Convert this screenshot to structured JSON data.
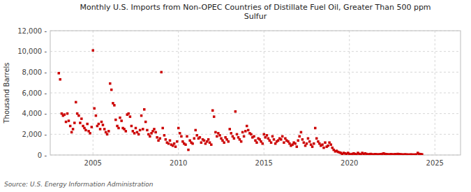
{
  "chart_data": {
    "type": "scatter",
    "title": "Monthly U.S. Imports from Non-OPEC Countries of Distillate Fuel Oil, Greater Than 500 ppm\nSulfur",
    "ylabel": "Thousand Barrels",
    "source": "Source: U.S. Energy Information Administration",
    "color": "#cc0000",
    "marker": "square",
    "grid": true,
    "xlim": [
      2002.5,
      2026.5
    ],
    "xticks": [
      2005,
      2010,
      2015,
      2020,
      2025
    ],
    "ylim": [
      0,
      12000
    ],
    "yticks": [
      {
        "value": 0,
        "label": "0 -"
      },
      {
        "value": 2000,
        "label": "2,000 -"
      },
      {
        "value": 4000,
        "label": "4,000 -"
      },
      {
        "value": 6000,
        "label": "6,000 -"
      },
      {
        "value": 8000,
        "label": "8,000 -"
      },
      {
        "value": 10000,
        "label": "10,000 -"
      },
      {
        "value": 12000,
        "label": "12,000 -"
      }
    ],
    "x": [
      2003.0,
      2003.08,
      2003.17,
      2003.25,
      2003.33,
      2003.42,
      2003.5,
      2003.58,
      2003.67,
      2003.75,
      2003.83,
      2003.92,
      2004.0,
      2004.08,
      2004.17,
      2004.25,
      2004.33,
      2004.42,
      2004.5,
      2004.58,
      2004.67,
      2004.75,
      2004.83,
      2004.92,
      2005.0,
      2005.08,
      2005.17,
      2005.25,
      2005.33,
      2005.42,
      2005.5,
      2005.58,
      2005.67,
      2005.75,
      2005.83,
      2005.92,
      2006.0,
      2006.08,
      2006.17,
      2006.25,
      2006.33,
      2006.42,
      2006.5,
      2006.58,
      2006.67,
      2006.75,
      2006.83,
      2006.92,
      2007.0,
      2007.08,
      2007.17,
      2007.25,
      2007.33,
      2007.42,
      2007.5,
      2007.58,
      2007.67,
      2007.75,
      2007.83,
      2007.92,
      2008.0,
      2008.08,
      2008.17,
      2008.25,
      2008.33,
      2008.42,
      2008.5,
      2008.58,
      2008.67,
      2008.75,
      2008.83,
      2008.92,
      2009.0,
      2009.08,
      2009.17,
      2009.25,
      2009.33,
      2009.42,
      2009.5,
      2009.58,
      2009.67,
      2009.75,
      2009.83,
      2009.92,
      2010.0,
      2010.08,
      2010.17,
      2010.25,
      2010.33,
      2010.42,
      2010.5,
      2010.58,
      2010.67,
      2010.75,
      2010.83,
      2010.92,
      2011.0,
      2011.08,
      2011.17,
      2011.25,
      2011.33,
      2011.42,
      2011.5,
      2011.58,
      2011.67,
      2011.75,
      2011.83,
      2011.92,
      2012.0,
      2012.08,
      2012.17,
      2012.25,
      2012.33,
      2012.42,
      2012.5,
      2012.58,
      2012.67,
      2012.75,
      2012.83,
      2012.92,
      2013.0,
      2013.08,
      2013.17,
      2013.25,
      2013.33,
      2013.42,
      2013.5,
      2013.58,
      2013.67,
      2013.75,
      2013.83,
      2013.92,
      2014.0,
      2014.08,
      2014.17,
      2014.25,
      2014.33,
      2014.42,
      2014.5,
      2014.58,
      2014.67,
      2014.75,
      2014.83,
      2014.92,
      2015.0,
      2015.08,
      2015.17,
      2015.25,
      2015.33,
      2015.42,
      2015.5,
      2015.58,
      2015.67,
      2015.75,
      2015.83,
      2015.92,
      2016.0,
      2016.08,
      2016.17,
      2016.25,
      2016.33,
      2016.42,
      2016.5,
      2016.58,
      2016.67,
      2016.75,
      2016.83,
      2016.92,
      2017.0,
      2017.08,
      2017.17,
      2017.25,
      2017.33,
      2017.42,
      2017.5,
      2017.58,
      2017.67,
      2017.75,
      2017.83,
      2017.92,
      2018.0,
      2018.08,
      2018.17,
      2018.25,
      2018.33,
      2018.42,
      2018.5,
      2018.58,
      2018.67,
      2018.75,
      2018.83,
      2018.92,
      2019.0,
      2019.08,
      2019.17,
      2019.25,
      2019.33,
      2019.42,
      2019.5,
      2019.58,
      2019.67,
      2019.75,
      2019.83,
      2019.92,
      2020.0,
      2020.08,
      2020.17,
      2020.25,
      2020.33,
      2020.42,
      2020.5,
      2020.58,
      2020.67,
      2020.75,
      2020.83,
      2020.92,
      2021.0,
      2021.08,
      2021.17,
      2021.25,
      2021.33,
      2021.42,
      2021.5,
      2021.58,
      2021.67,
      2021.75,
      2021.83,
      2021.92,
      2022.0,
      2022.08,
      2022.17,
      2022.25,
      2022.33,
      2022.42,
      2022.5,
      2022.58,
      2022.67,
      2022.75,
      2022.83,
      2022.92,
      2023.0,
      2023.08,
      2023.17,
      2023.25,
      2023.33,
      2023.42,
      2023.5,
      2023.58,
      2023.67,
      2023.75,
      2023.83,
      2023.92,
      2024.0,
      2024.08,
      2024.17,
      2024.25
    ],
    "values": [
      7900,
      7300,
      4000,
      3800,
      3900,
      3200,
      4000,
      3300,
      2800,
      2200,
      2500,
      3100,
      5100,
      4000,
      3800,
      3100,
      3500,
      2800,
      2600,
      2400,
      3000,
      2300,
      2100,
      2700,
      10100,
      4500,
      3800,
      2800,
      3000,
      2500,
      3200,
      2900,
      2500,
      2200,
      2000,
      2300,
      6900,
      6300,
      5000,
      4800,
      3400,
      2800,
      2600,
      3600,
      3300,
      2600,
      2500,
      2300,
      3900,
      4000,
      3700,
      2800,
      2300,
      2100,
      2600,
      2200,
      2000,
      2400,
      3800,
      2500,
      4400,
      3200,
      2400,
      2000,
      1800,
      2100,
      2300,
      2500,
      2200,
      1700,
      1400,
      1600,
      8000,
      2600,
      1900,
      1500,
      1200,
      1100,
      1400,
      1000,
      900,
      1100,
      800,
      1300,
      2600,
      2100,
      1800,
      1300,
      1100,
      1000,
      1800,
      500,
      1400,
      1200,
      1100,
      1600,
      2400,
      1900,
      1600,
      1700,
      1200,
      1500,
      1400,
      1100,
      1300,
      1500,
      1200,
      1000,
      4300,
      3700,
      2200,
      1800,
      2100,
      1900,
      1600,
      1400,
      1200,
      1700,
      1500,
      1300,
      2500,
      2100,
      1800,
      1600,
      4200,
      2000,
      1700,
      1500,
      1300,
      2200,
      1800,
      2300,
      2800,
      2400,
      2100,
      2000,
      1700,
      1800,
      1400,
      1200,
      1600,
      1500,
      1300,
      1100,
      2000,
      1700,
      1900,
      1600,
      1400,
      1200,
      1800,
      1500,
      1100,
      1300,
      1400,
      1600,
      1500,
      1800,
      1200,
      1600,
      1400,
      1300,
      1100,
      900,
      1000,
      1200,
      1100,
      800,
      1400,
      1800,
      2200,
      1500,
      1200,
      900,
      1100,
      1600,
      1300,
      1000,
      800,
      1100,
      2600,
      1600,
      1300,
      1100,
      900,
      1000,
      700,
      1200,
      800,
      900,
      1200,
      1000,
      700,
      500,
      350,
      400,
      300,
      250,
      200,
      100,
      200,
      150,
      100,
      200,
      100,
      50,
      100,
      150,
      100,
      50,
      200,
      100,
      50,
      200,
      100,
      150,
      100,
      50,
      80,
      100,
      60,
      50,
      80,
      70,
      50,
      60,
      80,
      100,
      150,
      100,
      80,
      60,
      50,
      80,
      60,
      50,
      80,
      60,
      100,
      80,
      60,
      50,
      40,
      60,
      50,
      40,
      30,
      50,
      40,
      30,
      40,
      50,
      200,
      100,
      80,
      60
    ]
  }
}
